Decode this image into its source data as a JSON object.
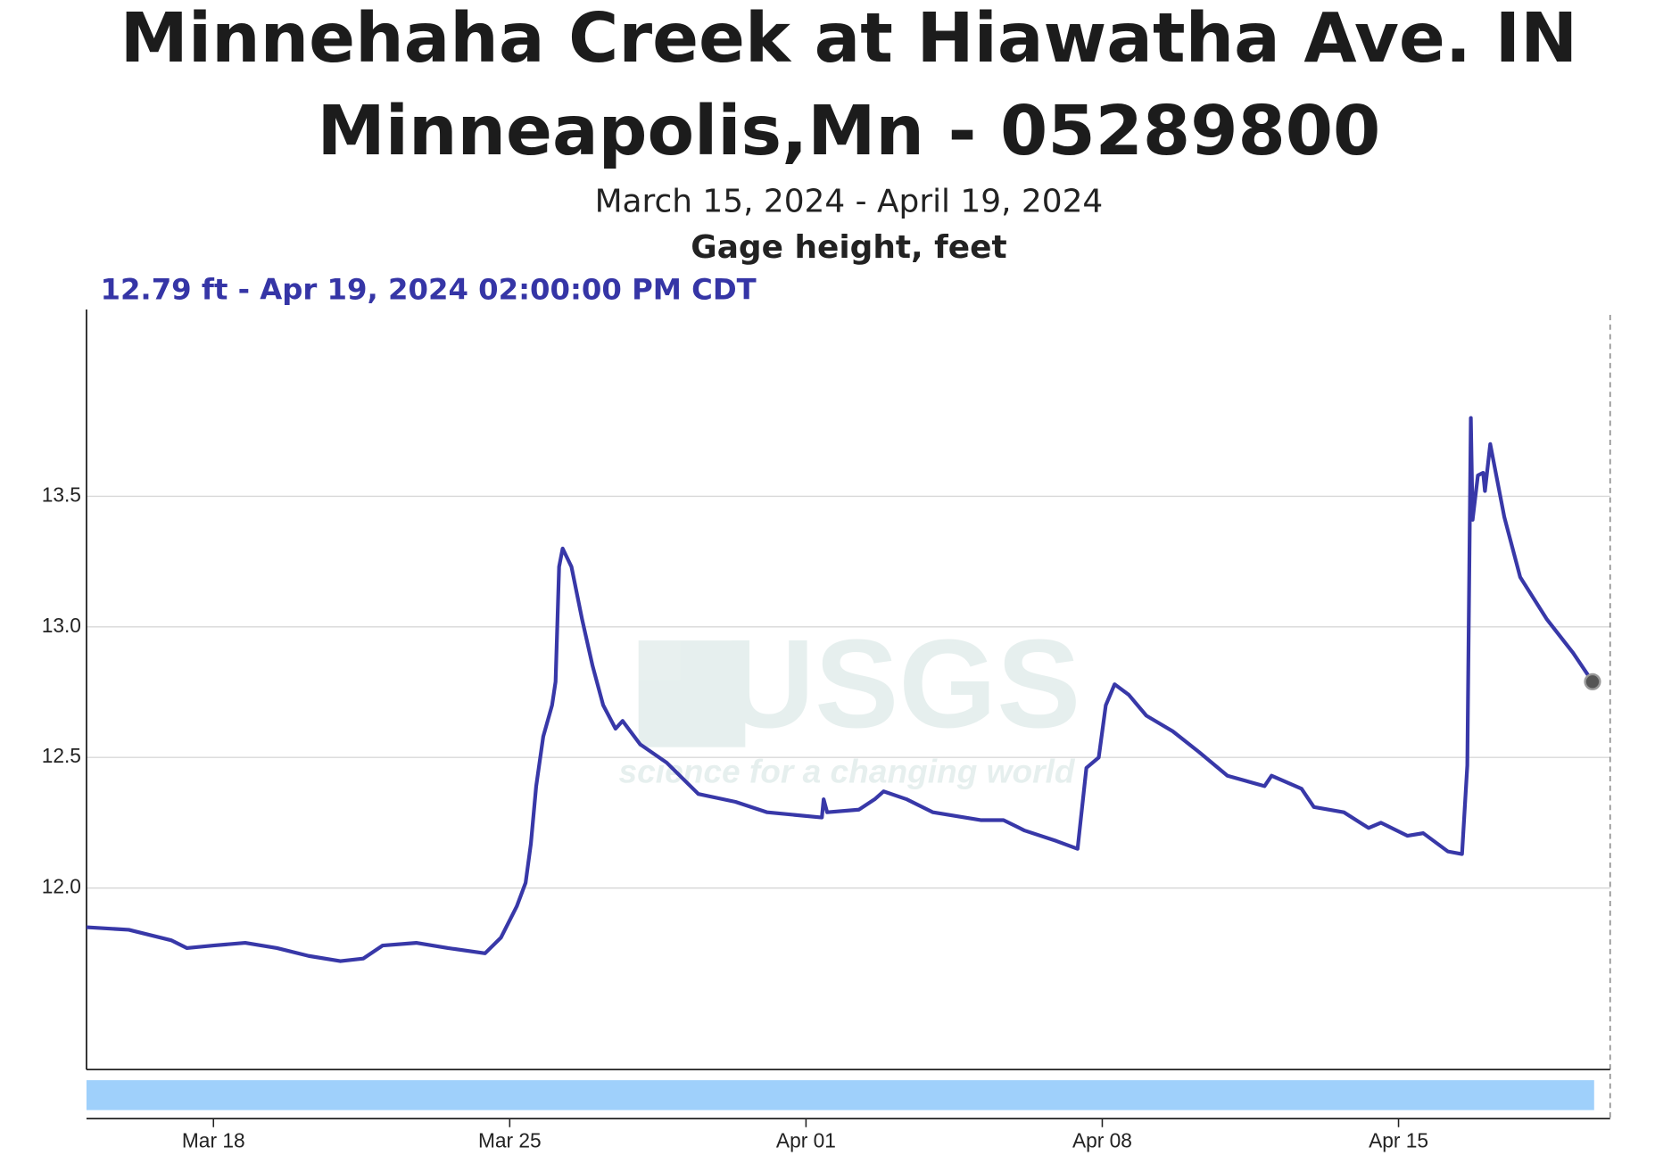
{
  "chart_data": {
    "type": "line",
    "title": [
      "Minnehaha Creek at Hiawatha Ave. IN",
      "Minneapolis,Mn - 05289800"
    ],
    "subtitle": "March 15, 2024 - April 19, 2024",
    "y_label": "Gage height, feet",
    "readout": "12.79 ft - Apr 19, 2024 02:00:00 PM CDT",
    "watermark": {
      "logo": "USGS",
      "tagline": "science for a changing world"
    },
    "grid": true,
    "xlim": [
      "2024-03-15T00:00",
      "2024-04-20T00:00"
    ],
    "xticks": [
      {
        "value": "2024-03-18T00:00",
        "label": "Mar 18"
      },
      {
        "value": "2024-03-25T00:00",
        "label": "Mar 25"
      },
      {
        "value": "2024-04-01T00:00",
        "label": "Apr 01"
      },
      {
        "value": "2024-04-08T00:00",
        "label": "Apr 08"
      },
      {
        "value": "2024-04-15T00:00",
        "label": "Apr 15"
      }
    ],
    "ylim": [
      11.305,
      14.215
    ],
    "yticks": [
      {
        "value": 12,
        "label": "12.0"
      },
      12.5,
      {
        "value": 13,
        "label": "13.0"
      },
      13.5
    ],
    "x": [
      "2024-03-15T00:00",
      "2024-03-16T00:00",
      "2024-03-17T00:00",
      "2024-03-17T09:00",
      "2024-03-18T00:00",
      "2024-03-18T18:00",
      "2024-03-19T12:00",
      "2024-03-20T06:00",
      "2024-03-21T00:00",
      "2024-03-21T13:00",
      "2024-03-22T00:00",
      "2024-03-22T19:00",
      "2024-03-23T13:00",
      "2024-03-24T10:00",
      "2024-03-24T19:00",
      "2024-03-25T04:00",
      "2024-03-25T09:00",
      "2024-03-25T12:00",
      "2024-03-25T15:00",
      "2024-03-25T19:00",
      "2024-03-26T00:00",
      "2024-03-26T02:00",
      "2024-03-26T04:00",
      "2024-03-26T06:00",
      "2024-03-26T11:00",
      "2024-03-26T17:00",
      "2024-03-26T23:00",
      "2024-03-27T05:00",
      "2024-03-27T12:00",
      "2024-03-27T16:00",
      "2024-03-28T02:00",
      "2024-03-28T17:00",
      "2024-03-29T11:00",
      "2024-03-30T08:00",
      "2024-03-31T02:00",
      "2024-04-01T09:00",
      "2024-04-01T10:00",
      "2024-04-01T12:00",
      "2024-04-02T06:00",
      "2024-04-02T15:00",
      "2024-04-02T20:00",
      "2024-04-03T09:00",
      "2024-04-04T00:00",
      "2024-04-05T03:00",
      "2024-04-05T16:00",
      "2024-04-06T04:00",
      "2024-04-06T22:00",
      "2024-04-07T10:00",
      "2024-04-07T15:00",
      "2024-04-07T22:00",
      "2024-04-08T02:00",
      "2024-04-08T07:00",
      "2024-04-08T15:00",
      "2024-04-09T01:00",
      "2024-04-09T16:00",
      "2024-04-10T07:00",
      "2024-04-10T23:00",
      "2024-04-11T20:00",
      "2024-04-12T00:00",
      "2024-04-12T17:00",
      "2024-04-13T00:00",
      "2024-04-13T17:00",
      "2024-04-14T07:00",
      "2024-04-14T14:00",
      "2024-04-15T05:00",
      "2024-04-15T14:00",
      "2024-04-16T04:00",
      "2024-04-16T12:00",
      "2024-04-16T15:00",
      "2024-04-16T17:00",
      "2024-04-16T18:00",
      "2024-04-16T21:00",
      "2024-04-17T00:00",
      "2024-04-17T01:00",
      "2024-04-17T04:00",
      "2024-04-17T12:00",
      "2024-04-17T21:00",
      "2024-04-18T12:00",
      "2024-04-19T03:00",
      "2024-04-19T14:00"
    ],
    "series": [
      {
        "name": "Gage height",
        "color": "#3838a8",
        "values": [
          11.85,
          11.84,
          11.8,
          11.77,
          11.78,
          11.79,
          11.77,
          11.74,
          11.72,
          11.73,
          11.78,
          11.79,
          11.77,
          11.75,
          11.81,
          11.93,
          12.02,
          12.17,
          12.39,
          12.58,
          12.7,
          12.79,
          13.23,
          13.3,
          13.23,
          13.03,
          12.85,
          12.7,
          12.61,
          12.64,
          12.55,
          12.48,
          12.36,
          12.33,
          12.29,
          12.27,
          12.34,
          12.29,
          12.3,
          12.34,
          12.37,
          12.34,
          12.29,
          12.26,
          12.26,
          12.22,
          12.18,
          12.15,
          12.46,
          12.5,
          12.7,
          12.78,
          12.74,
          12.66,
          12.6,
          12.52,
          12.43,
          12.39,
          12.43,
          12.38,
          12.31,
          12.29,
          12.23,
          12.25,
          12.2,
          12.21,
          12.14,
          12.13,
          12.47,
          13.8,
          13.41,
          13.58,
          13.59,
          13.52,
          13.7,
          13.42,
          13.19,
          13.03,
          12.9,
          12.79
        ]
      }
    ]
  }
}
